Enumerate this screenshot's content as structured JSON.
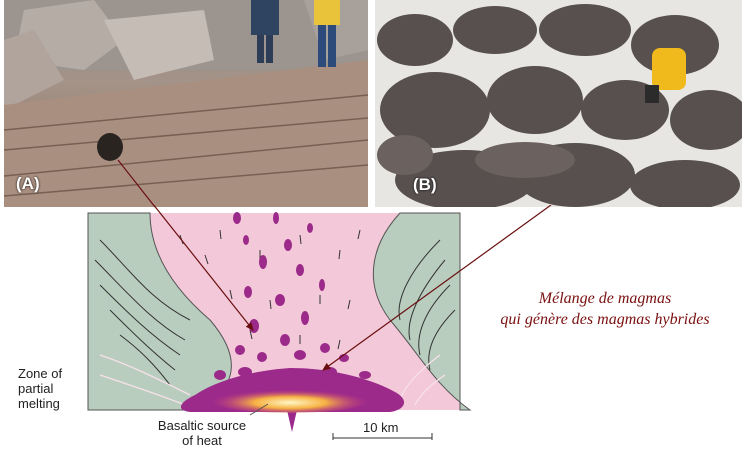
{
  "photos": {
    "a": {
      "label": "(A)",
      "description_icon": "granite-outcrop-photo"
    },
    "b": {
      "label": "(B)",
      "description_icon": "mixed-magma-rock-photo"
    }
  },
  "diagram": {
    "zone_label": [
      "Zone of",
      "partial",
      "melting"
    ],
    "source_label": [
      "Basaltic source",
      "of heat"
    ],
    "scale_label": "10 km"
  },
  "caption": {
    "line1": "Mélange de magmas",
    "line2": "qui génère des magmas hybrides",
    "color": "#7a1010"
  },
  "colors": {
    "magma": "#f3c8d8",
    "country_rock": "#b9cdbf",
    "enclaves": "#9b2a8a",
    "arrow": "#6a0f0f"
  }
}
